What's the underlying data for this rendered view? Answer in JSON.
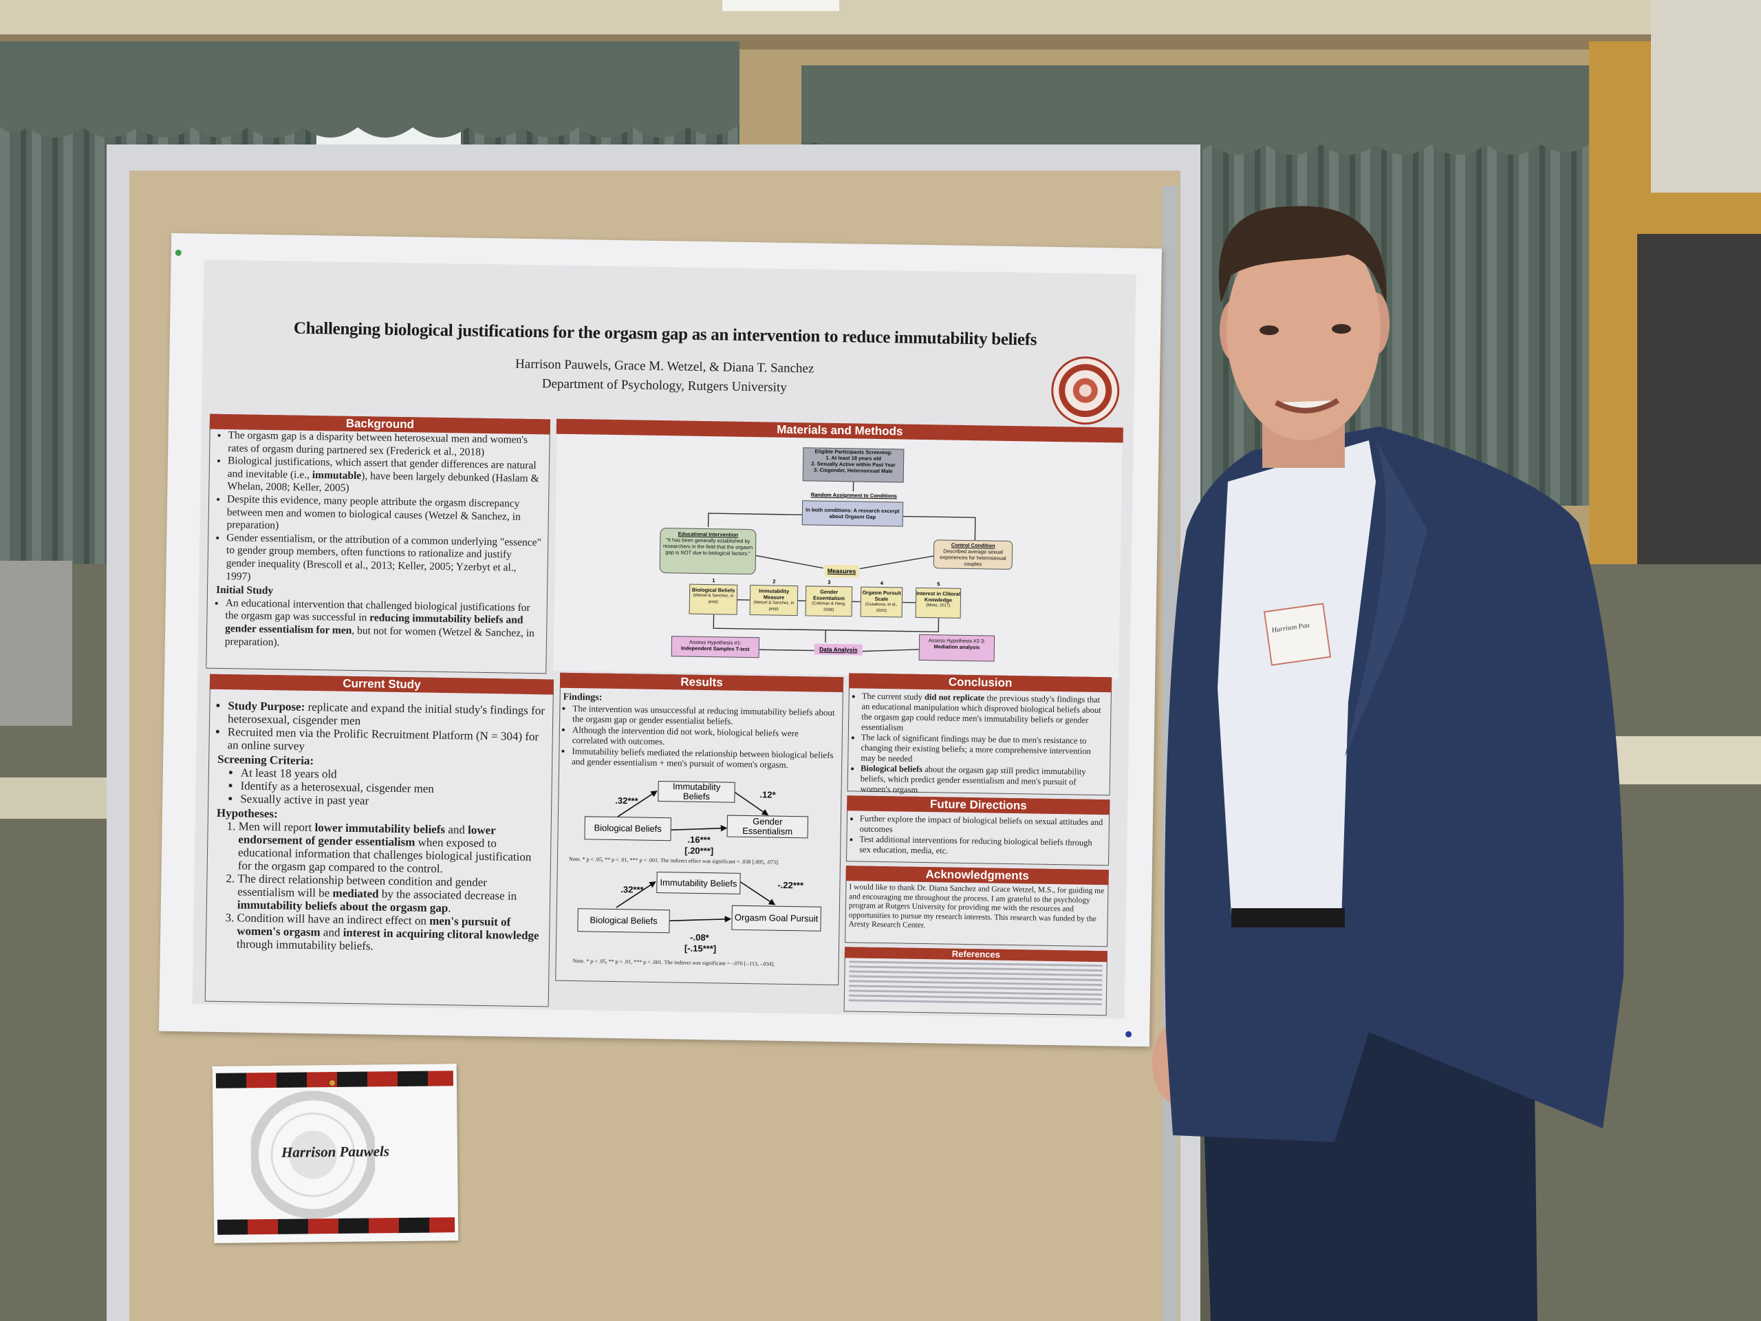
{
  "poster": {
    "title": "Challenging biological justifications for the orgasm gap as an intervention to reduce immutability beliefs",
    "authors": "Harrison Pauwels, Grace M. Wetzel, & Diana T. Sanchez",
    "department": "Department of Psychology, Rutgers University",
    "seal_text": "RUTGERS THE STATE UNIVERSITY OF NEW JERSEY 1766",
    "accent_color": "#a63a28"
  },
  "background": {
    "heading": "Background",
    "items": [
      [
        {
          "t": "The orgasm gap is a disparity between heterosexual men and women's rates of orgasm during partnered sex (Frederick et al., 2018)"
        }
      ],
      [
        {
          "t": "Biological justifications, which assert that gender differences are natural and inevitable (i.e., "
        },
        {
          "t": "immutable",
          "b": true
        },
        {
          "t": "), have been largely debunked (Haslam & Whelan, 2008; Keller, 2005)"
        }
      ],
      [
        {
          "t": "Despite this evidence, many people attribute the orgasm discrepancy between men and women to biological causes (Wetzel & Sanchez, in preparation)"
        }
      ],
      [
        {
          "t": "Gender essentialism, or the attribution of a common underlying \"essence\" to gender group members, often functions to rationalize and justify gender inequality (Brescoll et al., 2013; Keller, 2005; Yzerbyt et al., 1997)"
        }
      ]
    ],
    "initial_heading": "Initial Study",
    "initial_items": [
      [
        {
          "t": "An educational intervention that challenged biological justifications for the orgasm gap was successful in "
        },
        {
          "t": "reducing immutability beliefs and gender essentialism for men",
          "b": true
        },
        {
          "t": ", but not for women (Wetzel & Sanchez, in preparation)."
        }
      ]
    ]
  },
  "current_study": {
    "heading": "Current Study",
    "items": [
      [
        {
          "t": "Study Purpose:",
          "b": true
        },
        {
          "t": " replicate and expand the initial study's findings for heterosexual, cisgender men"
        }
      ],
      [
        {
          "t": "Recruited men via the Prolific Recruitment Platform (N = 304) for an online survey"
        }
      ]
    ],
    "screening_heading": "Screening Criteria:",
    "screening_items": [
      [
        {
          "t": "At least 18 years old"
        }
      ],
      [
        {
          "t": "Identify as a heterosexual, cisgender men"
        }
      ],
      [
        {
          "t": "Sexually active in past year"
        }
      ]
    ],
    "hypotheses_heading": "Hypotheses:",
    "hypotheses": [
      [
        {
          "t": "Men will report "
        },
        {
          "t": "lower immutability beliefs",
          "b": true
        },
        {
          "t": " and "
        },
        {
          "t": "lower endorsement of gender essentialism",
          "b": true
        },
        {
          "t": " when exposed to educational information that challenges biological justification for the orgasm gap compared to the control."
        }
      ],
      [
        {
          "t": "The direct relationship between condition and gender essentialism will be "
        },
        {
          "t": "mediated",
          "b": true
        },
        {
          "t": " by the associated decrease in "
        },
        {
          "t": "immutability beliefs about the orgasm gap",
          "b": true
        },
        {
          "t": "."
        }
      ],
      [
        {
          "t": "Condition will have an indirect effect on "
        },
        {
          "t": "men's pursuit of women's orgasm",
          "b": true
        },
        {
          "t": " and "
        },
        {
          "t": "interest in acquiring clitoral knowledge",
          "b": true
        },
        {
          "t": " through immutability beliefs."
        }
      ]
    ]
  },
  "methods": {
    "heading": "Materials and Methods",
    "screening_title": "Eligible Participants Screening:",
    "screening_items": [
      "1. At least 18 years old",
      "2. Sexually Active within Past Year",
      "3. Cisgender, Heterosexual Male"
    ],
    "random_label": "Random Assignment to Conditions",
    "both_conditions": "In both conditions: A research excerpt about Orgasm Gap",
    "intervention_title": "Educational Intervention",
    "intervention_text": "\"It has been generally established by researchers in the field that the orgasm gap is NOT due to biological factors.\"",
    "control_title": "Control Condition",
    "control_text": "Described average sexual experiences for heterosexual couples",
    "measures_label": "Measures",
    "measures": [
      {
        "num": "1",
        "name": "Biological Beliefs",
        "cite": "(Wetzel & Sanchez, in prep)"
      },
      {
        "num": "2",
        "name": "Immutability Measure",
        "cite": "(Wetzel & Sanchez, in prep)"
      },
      {
        "num": "3",
        "name": "Gender Essentialism",
        "cite": "(Coleman & Hong, 2008)"
      },
      {
        "num": "4",
        "name": "Orgasm Pursuit Scale",
        "cite": "(Gusakova, et al., 2020)"
      },
      {
        "num": "5",
        "name": "Interest in Clitoral Knowledge",
        "cite": "(Mintz, 2017)"
      }
    ],
    "hyp1_title": "Assess Hypothesis #1:",
    "hyp1_text": "Independent Samples T-test",
    "data_analysis": "Data Analysis",
    "hyp23_title": "Assess Hypothesis #2-3:",
    "hyp23_text": "Mediation analysis",
    "colors": {
      "screening": "#a9acb6",
      "conditions": "#c3c8de",
      "intervention": "#c6d5b8",
      "control": "#ecdcc0",
      "measures": "#efe6b0",
      "hypothesis": "#e7b8e0"
    }
  },
  "results": {
    "heading": "Results",
    "findings_heading": "Findings:",
    "items": [
      [
        {
          "t": "The intervention was unsuccessful at reducing immutability beliefs about the orgasm gap or gender essentialist beliefs."
        }
      ],
      [
        {
          "t": "Although the intervention did not work, biological beliefs were correlated with outcomes."
        }
      ],
      [
        {
          "t": "Immutability beliefs mediated the relationship between biological beliefs and gender essentialism + men's pursuit of women's orgasm."
        }
      ]
    ],
    "model1": {
      "mediator": "Immutability Beliefs",
      "predictor": "Biological Beliefs",
      "outcome": "Gender Essentialism",
      "a": ".32***",
      "b": ".12*",
      "c": ".16***",
      "c_total": "[.20***]",
      "note": "Note. * p < .05, ** p < .01, *** p < .001. The indirect effect was significant = .038 [.005, .073]."
    },
    "model2": {
      "mediator": "Immutability Beliefs",
      "predictor": "Biological Beliefs",
      "outcome": "Orgasm Goal Pursuit",
      "a": ".32***",
      "b": "-.22***",
      "c": "-.08*",
      "c_total": "[-.15***]",
      "note": "Note. * p < .05, ** p < .01, *** p < .001. The indirect was significant = -.070 [-.113, -.034]."
    }
  },
  "conclusion": {
    "heading": "Conclusion",
    "items": [
      [
        {
          "t": "The current study "
        },
        {
          "t": "did not replicate",
          "b": true
        },
        {
          "t": " the previous study's findings that an educational manipulation which disproved biological beliefs about the orgasm gap could reduce men's immutability beliefs or gender essentialism"
        }
      ],
      [
        {
          "t": "The lack of significant findings may be due to men's resistance to changing their existing beliefs; a more comprehensive intervention may be needed"
        }
      ],
      [
        {
          "t": "Biological beliefs",
          "b": true
        },
        {
          "t": " about the orgasm gap still predict immutability beliefs, which predict gender essentialism and men's pursuit of women's orgasm"
        }
      ]
    ]
  },
  "future": {
    "heading": "Future Directions",
    "items": [
      [
        {
          "t": "Further explore the impact of biological beliefs on sexual attitudes and outcomes"
        }
      ],
      [
        {
          "t": "Test additional interventions for reducing biological beliefs through sex education, media, etc."
        }
      ]
    ]
  },
  "acknowledgments": {
    "heading": "Acknowledgments",
    "text": "I would like to thank Dr. Diana Sanchez and Grace Wetzel, M.S., for guiding me and encouraging me throughout the process. I am grateful to the psychology program at Rutgers University for providing me with the resources and opportunities to pursue my research interests. This research was funded by the Aresty Research Center."
  },
  "references": {
    "heading": "References"
  },
  "name_card": {
    "name": "Harrison Pauwels",
    "seal_text": "RUTGERS THE STATE UNIVERSITY OF NEW JERSEY 1766"
  },
  "name_tag": {
    "text": "Harrison Pau"
  }
}
